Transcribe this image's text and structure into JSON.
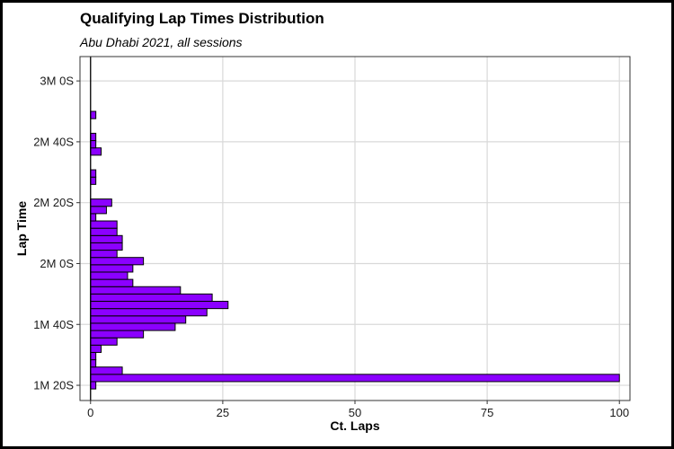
{
  "chart_data": {
    "type": "bar",
    "orientation": "horizontal",
    "title": "Qualifying Lap Times Distribution",
    "subtitle": "Abu Dhabi 2021, all sessions",
    "xlabel": "Ct. Laps",
    "ylabel": "Lap Time",
    "xlim": [
      -2,
      102
    ],
    "ylim_seconds": [
      75,
      188
    ],
    "x_ticks": [
      0,
      25,
      50,
      75,
      100
    ],
    "y_ticks": [
      {
        "seconds": 80,
        "label": "1M 20S"
      },
      {
        "seconds": 100,
        "label": "1M 40S"
      },
      {
        "seconds": 120,
        "label": "2M 0S"
      },
      {
        "seconds": 140,
        "label": "2M 20S"
      },
      {
        "seconds": 160,
        "label": "2M 40S"
      },
      {
        "seconds": 180,
        "label": "3M 0S"
      }
    ],
    "bin_width_seconds": 2.4,
    "bins": [
      {
        "lap_time_seconds": 80.0,
        "count": 1
      },
      {
        "lap_time_seconds": 82.4,
        "count": 100
      },
      {
        "lap_time_seconds": 84.8,
        "count": 6
      },
      {
        "lap_time_seconds": 87.2,
        "count": 1
      },
      {
        "lap_time_seconds": 89.6,
        "count": 1
      },
      {
        "lap_time_seconds": 92.0,
        "count": 2
      },
      {
        "lap_time_seconds": 94.4,
        "count": 5
      },
      {
        "lap_time_seconds": 96.8,
        "count": 10
      },
      {
        "lap_time_seconds": 99.2,
        "count": 16
      },
      {
        "lap_time_seconds": 101.6,
        "count": 18
      },
      {
        "lap_time_seconds": 104.0,
        "count": 22
      },
      {
        "lap_time_seconds": 106.4,
        "count": 26
      },
      {
        "lap_time_seconds": 108.8,
        "count": 23
      },
      {
        "lap_time_seconds": 111.2,
        "count": 17
      },
      {
        "lap_time_seconds": 113.6,
        "count": 8
      },
      {
        "lap_time_seconds": 116.0,
        "count": 7
      },
      {
        "lap_time_seconds": 118.4,
        "count": 8
      },
      {
        "lap_time_seconds": 120.8,
        "count": 10
      },
      {
        "lap_time_seconds": 123.2,
        "count": 5
      },
      {
        "lap_time_seconds": 125.6,
        "count": 6
      },
      {
        "lap_time_seconds": 128.0,
        "count": 6
      },
      {
        "lap_time_seconds": 130.4,
        "count": 5
      },
      {
        "lap_time_seconds": 132.8,
        "count": 5
      },
      {
        "lap_time_seconds": 135.2,
        "count": 1
      },
      {
        "lap_time_seconds": 137.6,
        "count": 3
      },
      {
        "lap_time_seconds": 140.0,
        "count": 4
      },
      {
        "lap_time_seconds": 147.2,
        "count": 1
      },
      {
        "lap_time_seconds": 149.6,
        "count": 1
      },
      {
        "lap_time_seconds": 156.8,
        "count": 2
      },
      {
        "lap_time_seconds": 159.2,
        "count": 1
      },
      {
        "lap_time_seconds": 161.6,
        "count": 1
      },
      {
        "lap_time_seconds": 168.8,
        "count": 1
      }
    ],
    "grid": true,
    "legend": "none",
    "bar_fill": "#8B00FF",
    "bar_outline": "#000000",
    "grid_color": "#d9d9d9",
    "panel_border": "#333333"
  }
}
